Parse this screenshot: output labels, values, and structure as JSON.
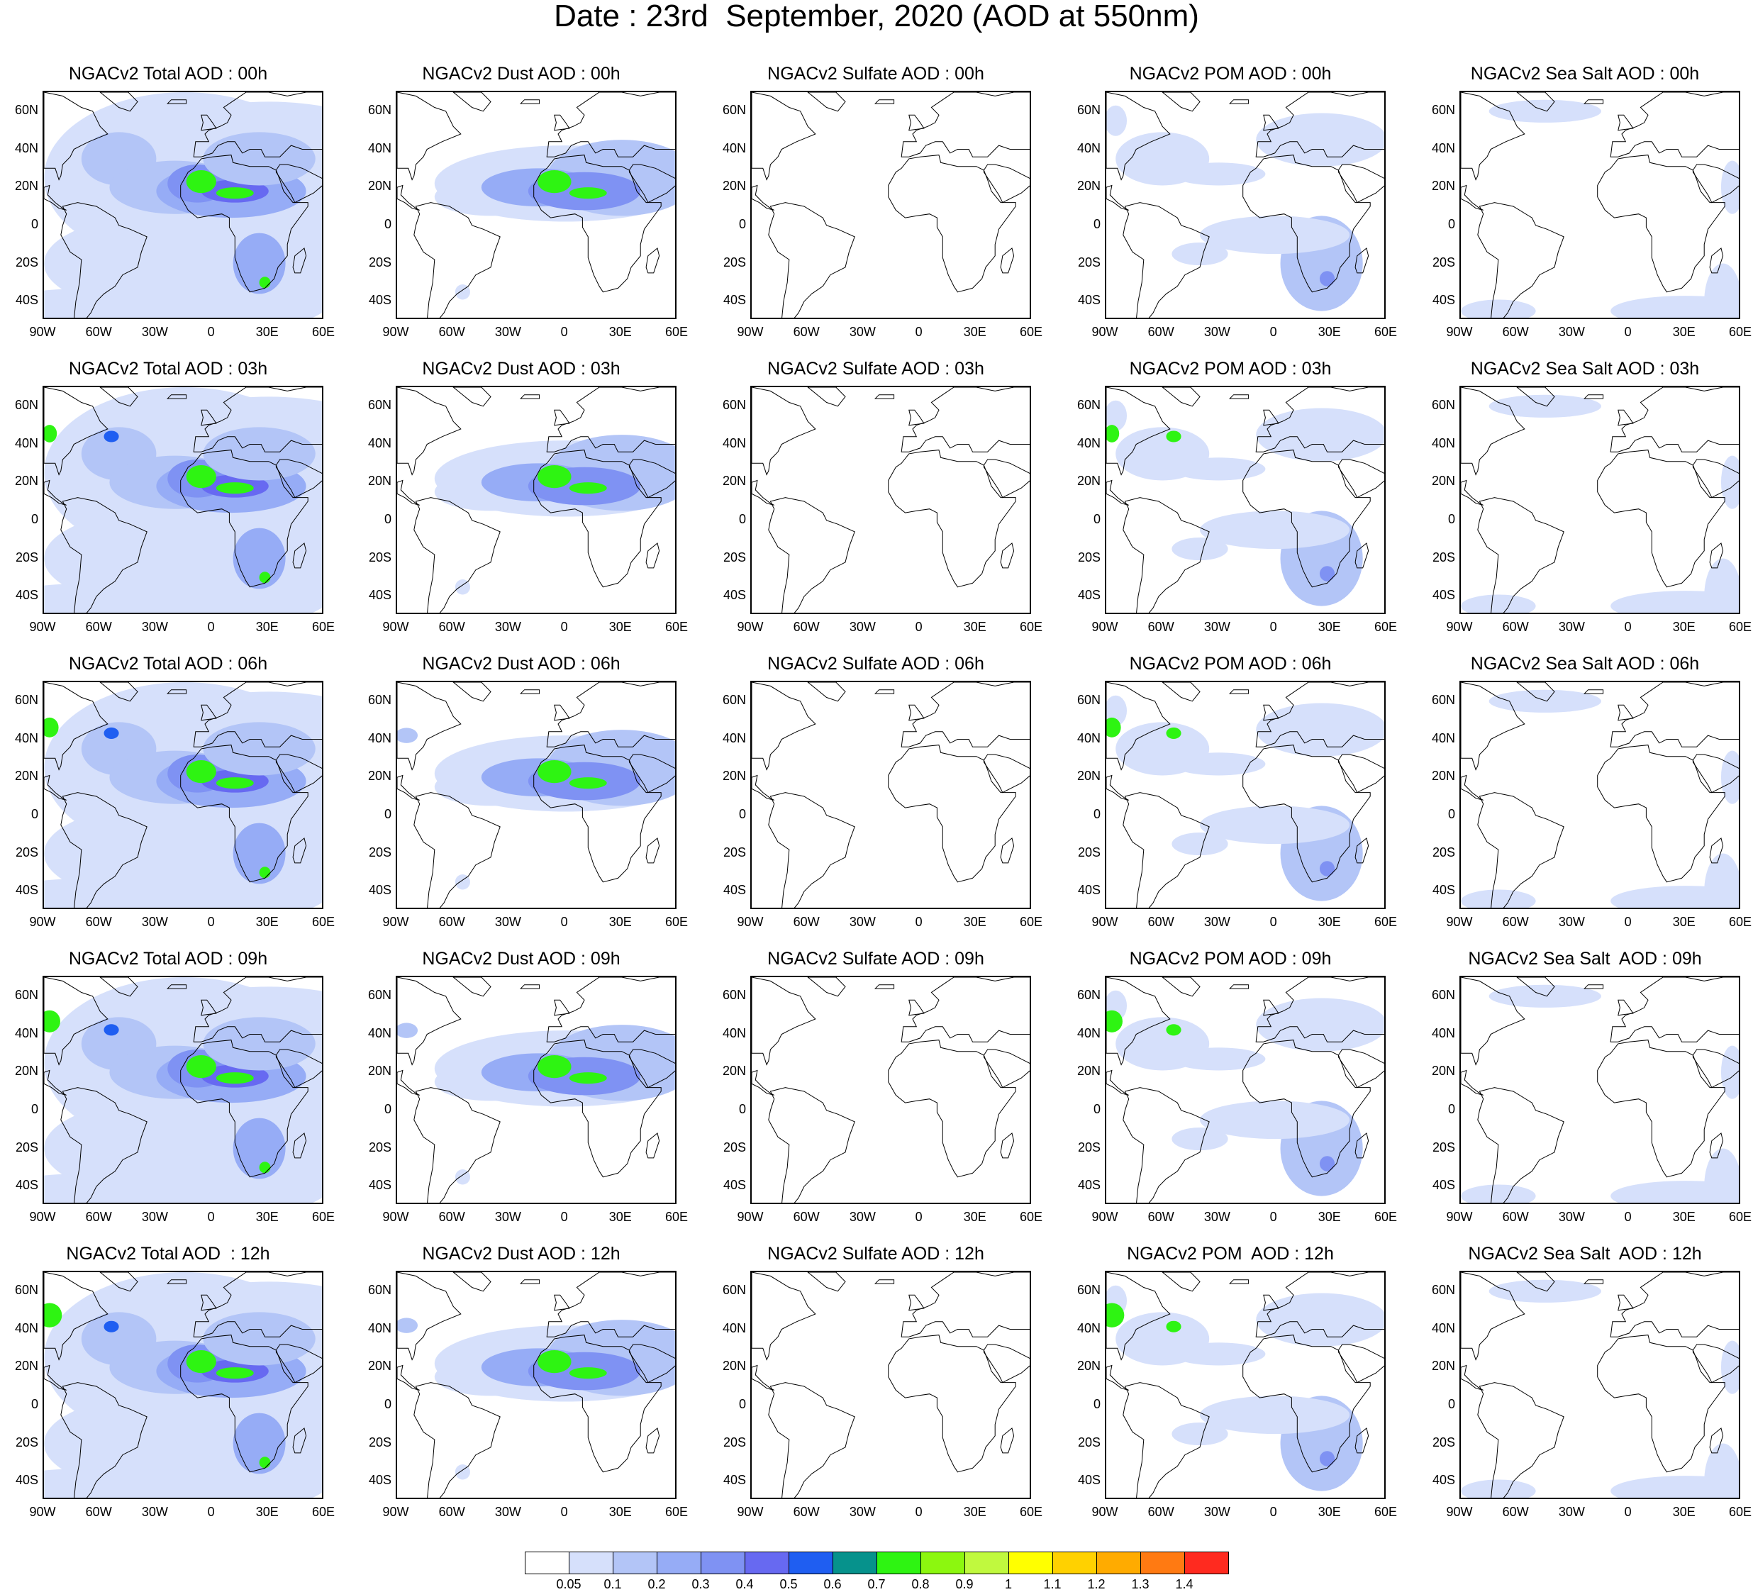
{
  "title": "Date : 23rd  September, 2020 (AOD at 550nm)",
  "lat_labels": [
    "60N",
    "40N",
    "20N",
    "0",
    "20S",
    "40S"
  ],
  "lon_labels": [
    "90W",
    "60W",
    "30W",
    "0",
    "30E",
    "60E"
  ],
  "colors": {
    "land_outline": "#000000",
    "background": "#ffffff"
  },
  "colorbar": {
    "labels": [
      "0.05",
      "0.1",
      "0.2",
      "0.3",
      "0.4",
      "0.5",
      "0.6",
      "0.7",
      "0.8",
      "0.9",
      "1",
      "1.1",
      "1.2",
      "1.3",
      "1.4"
    ],
    "colors": [
      "#ffffff",
      "#d6e0fb",
      "#b3c5f7",
      "#96acf6",
      "#7f92f3",
      "#6769f1",
      "#1f5ef1",
      "#06928c",
      "#2ef412",
      "#8cf70f",
      "#c0f93e",
      "#ffff00",
      "#ffd100",
      "#ffab00",
      "#ff7a12",
      "#ff2a1f"
    ]
  },
  "panels": [
    {
      "title": "NGACv2 Total AOD : 00h",
      "species": "total",
      "hour": 0
    },
    {
      "title": "NGACv2 Dust AOD : 00h",
      "species": "dust",
      "hour": 0
    },
    {
      "title": "NGACv2 Sulfate AOD : 00h",
      "species": "sulfate",
      "hour": 0
    },
    {
      "title": "NGACv2 POM AOD : 00h",
      "species": "pom",
      "hour": 0
    },
    {
      "title": "NGACv2 Sea Salt AOD : 00h",
      "species": "seasalt",
      "hour": 0
    },
    {
      "title": "NGACv2 Total AOD : 03h",
      "species": "total",
      "hour": 3
    },
    {
      "title": "NGACv2 Dust AOD : 03h",
      "species": "dust",
      "hour": 3
    },
    {
      "title": "NGACv2 Sulfate AOD : 03h",
      "species": "sulfate",
      "hour": 3
    },
    {
      "title": "NGACv2 POM AOD : 03h",
      "species": "pom",
      "hour": 3
    },
    {
      "title": "NGACv2 Sea Salt AOD : 03h",
      "species": "seasalt",
      "hour": 3
    },
    {
      "title": "NGACv2 Total AOD : 06h",
      "species": "total",
      "hour": 6
    },
    {
      "title": "NGACv2 Dust AOD : 06h",
      "species": "dust",
      "hour": 6
    },
    {
      "title": "NGACv2 Sulfate AOD : 06h",
      "species": "sulfate",
      "hour": 6
    },
    {
      "title": "NGACv2 POM AOD : 06h",
      "species": "pom",
      "hour": 6
    },
    {
      "title": "NGACv2 Sea Salt AOD : 06h",
      "species": "seasalt",
      "hour": 6
    },
    {
      "title": "NGACv2 Total AOD : 09h",
      "species": "total",
      "hour": 9
    },
    {
      "title": "NGACv2 Dust AOD : 09h",
      "species": "dust",
      "hour": 9
    },
    {
      "title": "NGACv2 Sulfate AOD : 09h",
      "species": "sulfate",
      "hour": 9
    },
    {
      "title": "NGACv2 POM AOD : 09h",
      "species": "pom",
      "hour": 9
    },
    {
      "title": "NGACv2 Sea Salt  AOD : 09h",
      "species": "seasalt",
      "hour": 9
    },
    {
      "title": "NGACv2 Total AOD  : 12h",
      "species": "total",
      "hour": 12
    },
    {
      "title": "NGACv2 Dust AOD : 12h",
      "species": "dust",
      "hour": 12
    },
    {
      "title": "NGACv2 Sulfate AOD : 12h",
      "species": "sulfate",
      "hour": 12
    },
    {
      "title": "NGACv2 POM  AOD : 12h",
      "species": "pom",
      "hour": 12
    },
    {
      "title": "NGACv2 Sea Salt  AOD : 12h",
      "species": "seasalt",
      "hour": 12
    }
  ]
}
